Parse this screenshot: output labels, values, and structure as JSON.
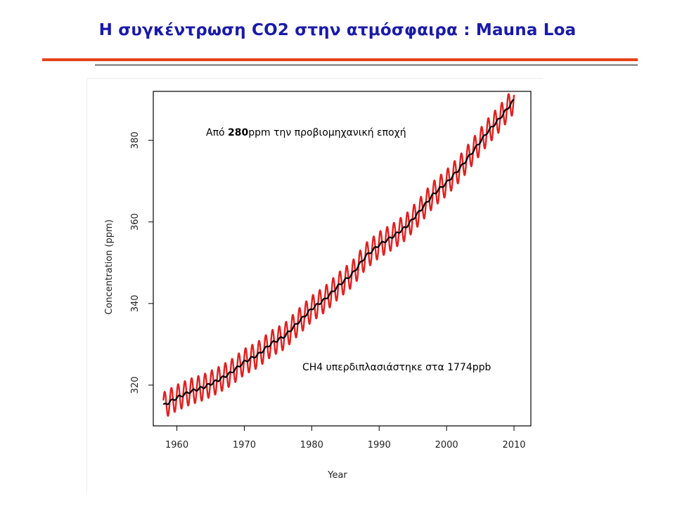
{
  "slide": {
    "title": "Η συγκέντρωση CO2 στην ατμόσφαιρα : Mauna Loa"
  },
  "annotations": {
    "top_prefix": "Από ",
    "top_bold": "280",
    "top_suffix": "ppm την προβιομηχανική εποχή",
    "bottom": "CH4 υπερδιπλασιάστηκε στα 1774ppb"
  },
  "colors": {
    "title": "#1a1aa8",
    "rule": "#e8401a",
    "monthly_series": "#e02020",
    "annual_series": "#000000"
  },
  "chart_data": {
    "type": "line",
    "title": "",
    "xlabel": "Year",
    "ylabel": "Concentration (ppm)",
    "xlim": [
      1956.5,
      2012.5
    ],
    "ylim": [
      310,
      392
    ],
    "xticks": [
      1960,
      1970,
      1980,
      1990,
      2000,
      2010
    ],
    "yticks": [
      320,
      340,
      360,
      380
    ],
    "grid": false,
    "legend": "none",
    "seasonal_amplitude_ppm": 3.2,
    "series": [
      {
        "style": "monthly, red, seasonal oscillation",
        "x": [
          1958,
          1960,
          1962,
          1964,
          1966,
          1968,
          1970,
          1972,
          1974,
          1976,
          1978,
          1980,
          1982,
          1984,
          1986,
          1988,
          1990,
          1992,
          1994,
          1996,
          1998,
          2000,
          2002,
          2004,
          2006,
          2008,
          2010
        ],
        "values": [
          315.0,
          316.9,
          318.4,
          319.5,
          321.1,
          323.0,
          325.7,
          327.4,
          330.2,
          332.0,
          335.4,
          338.7,
          341.1,
          344.4,
          347.2,
          351.6,
          354.4,
          356.4,
          358.8,
          362.6,
          366.7,
          369.6,
          373.2,
          377.5,
          381.9,
          385.6,
          389.9
        ]
      },
      {
        "style": "annual mean, black",
        "x": [
          1958,
          1960,
          1962,
          1964,
          1966,
          1968,
          1970,
          1972,
          1974,
          1976,
          1978,
          1980,
          1982,
          1984,
          1986,
          1988,
          1990,
          1992,
          1994,
          1996,
          1998,
          2000,
          2002,
          2004,
          2006,
          2008,
          2010
        ],
        "values": [
          315.0,
          316.9,
          318.4,
          319.5,
          321.1,
          323.0,
          325.7,
          327.4,
          330.2,
          332.0,
          335.4,
          338.7,
          341.1,
          344.4,
          347.2,
          351.6,
          354.4,
          356.4,
          358.8,
          362.6,
          366.7,
          369.6,
          373.2,
          377.5,
          381.9,
          385.6,
          389.9
        ]
      }
    ]
  }
}
